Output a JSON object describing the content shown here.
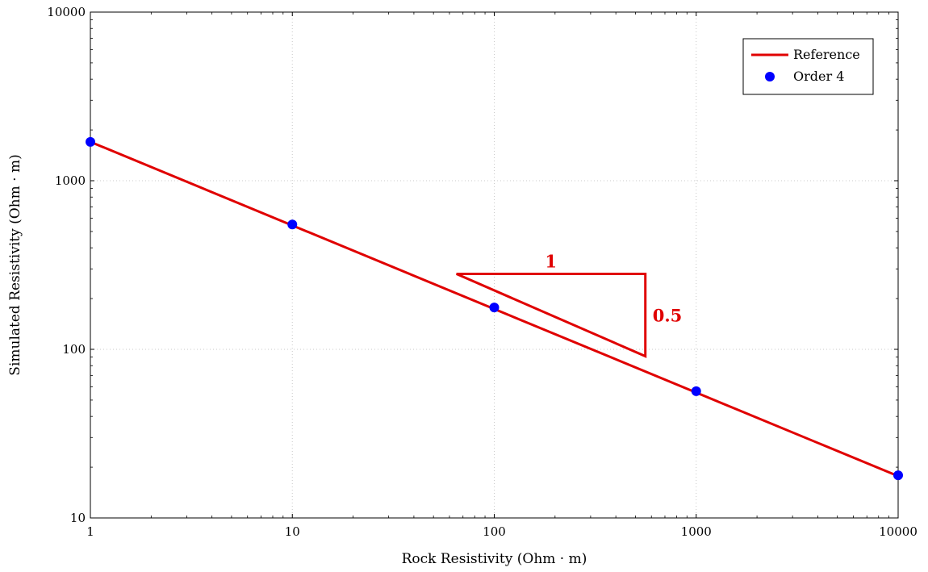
{
  "chart_data": {
    "type": "line",
    "xscale": "log",
    "yscale": "log",
    "xlim": [
      1,
      10000
    ],
    "ylim": [
      10,
      10000
    ],
    "xlabel": "Rock Resistivity (Ohm · m)",
    "ylabel": "Simulated Resistivity (Ohm · m)",
    "xticks": [
      1,
      10,
      100,
      1000,
      10000
    ],
    "yticks": [
      10,
      100,
      1000,
      10000
    ],
    "xtick_labels": [
      "1",
      "10",
      "100",
      "1000",
      "10000"
    ],
    "ytick_labels": [
      "10",
      "100",
      "1000",
      "10000"
    ],
    "grid": true,
    "legend_position": "top-right",
    "series": [
      {
        "name": "Reference",
        "kind": "line",
        "color": "#e00000",
        "x": [
          1,
          10000
        ],
        "y": [
          1700,
          17.7
        ]
      },
      {
        "name": "Order 4",
        "kind": "scatter",
        "color": "#0000ff",
        "x": [
          1,
          10,
          100,
          1000,
          10000
        ],
        "y": [
          1700,
          550,
          177,
          56.5,
          17.9
        ]
      }
    ],
    "slope_triangle": {
      "color": "#e00000",
      "x_start": 65,
      "x_end": 560,
      "y_top": 280,
      "y_bottom": 91,
      "run_label": "1",
      "rise_label": "0.5"
    }
  }
}
